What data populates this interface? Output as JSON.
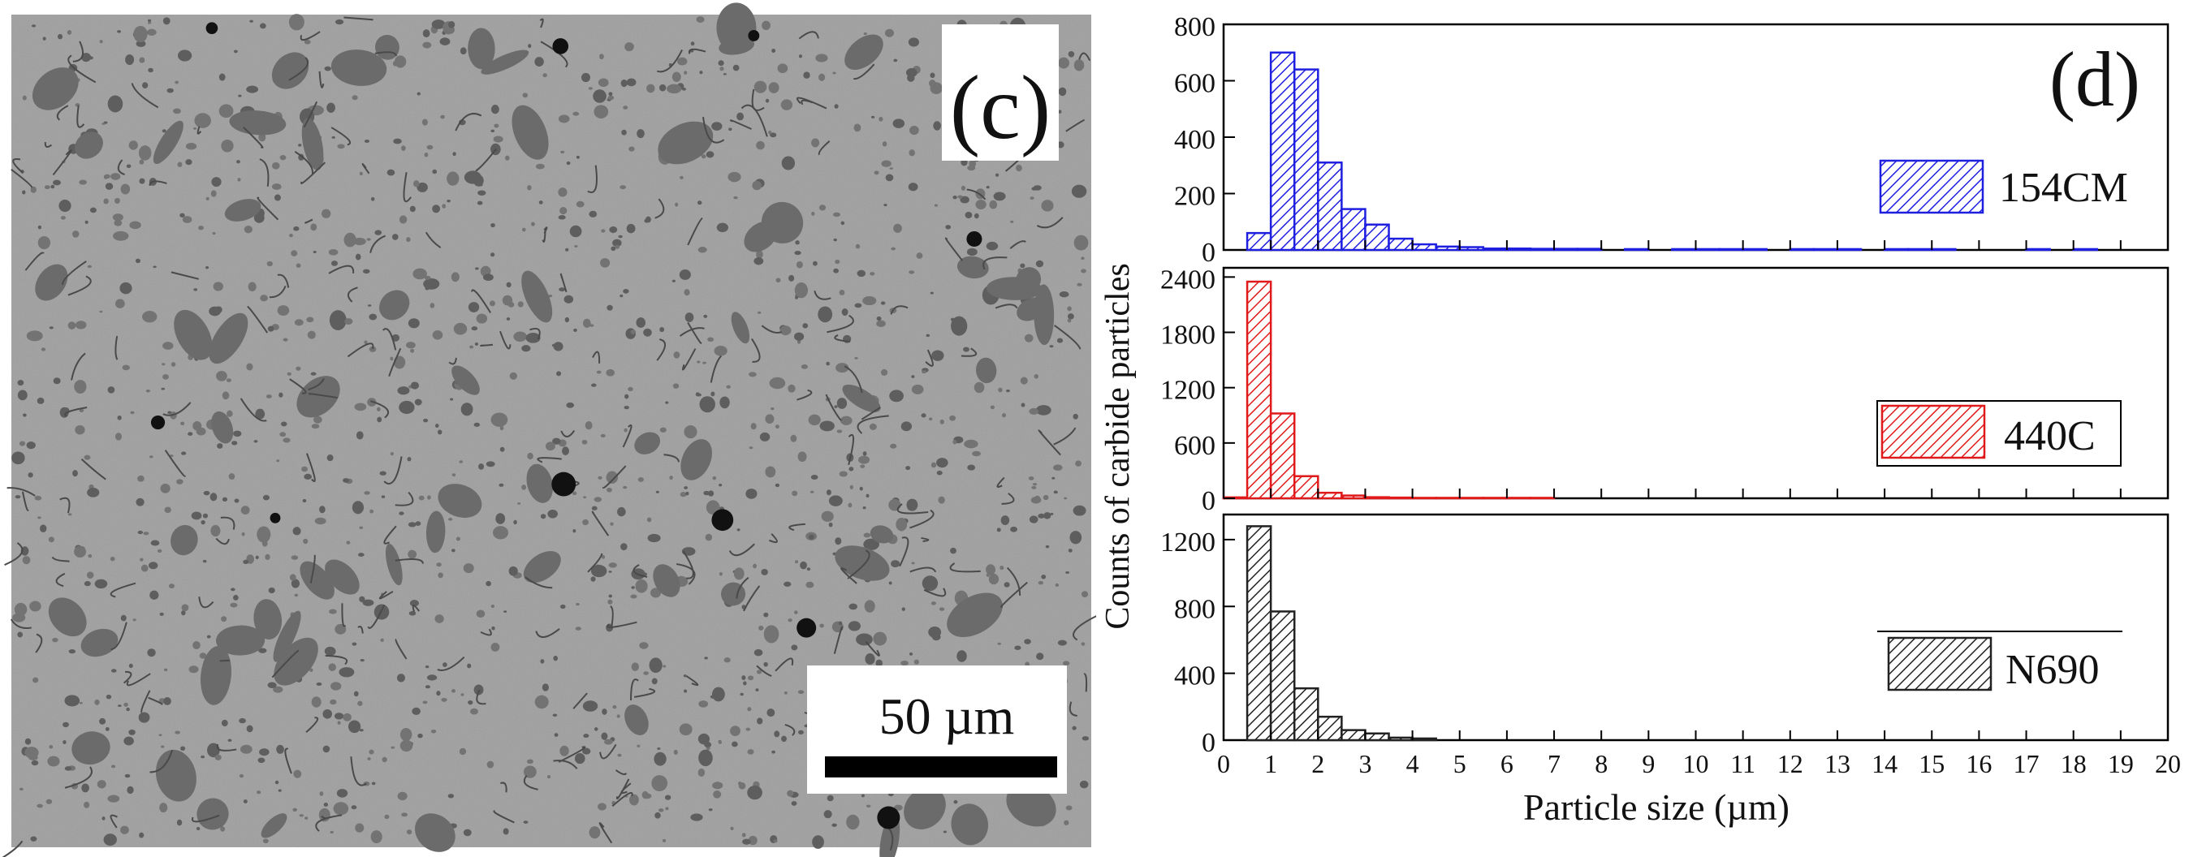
{
  "panel_c": {
    "label": "(c)",
    "scale_bar_text": "50 µm",
    "image": "SEM micrograph of carbide particles in matrix"
  },
  "panel_d": {
    "label": "(d)",
    "ylabel": "Counts of carbide particles",
    "xlabel": "Particle size (µm)"
  },
  "colors": {
    "154CM": "#1f1fe0",
    "440C": "#e01a1a",
    "N690": "#222222"
  },
  "chart_data": [
    {
      "type": "bar",
      "series_name": "154CM",
      "legend": "154CM",
      "bin_width": 0.5,
      "x": [
        0.5,
        1.0,
        1.5,
        2.0,
        2.5,
        3.0,
        3.5,
        4.0,
        4.5,
        5.0,
        5.5,
        6.0,
        6.5,
        7.0,
        7.5,
        8.0,
        8.5,
        9.0,
        9.5,
        10.0,
        10.5,
        11.0,
        11.5,
        12.0,
        12.5,
        13.0,
        13.5,
        14.0,
        14.5,
        15.0,
        15.5,
        16.0,
        16.5,
        17.0,
        17.5,
        18.0,
        18.5,
        19.0
      ],
      "values": [
        60,
        700,
        640,
        310,
        145,
        90,
        40,
        20,
        12,
        10,
        5,
        5,
        4,
        4,
        4,
        0,
        3,
        0,
        3,
        3,
        3,
        3,
        0,
        3,
        3,
        3,
        0,
        3,
        3,
        3,
        0,
        0,
        0,
        3,
        0,
        3,
        0,
        0
      ],
      "ylim": [
        0,
        800
      ],
      "yticks": [
        0,
        200,
        400,
        600,
        800
      ],
      "xlim": [
        0,
        20
      ]
    },
    {
      "type": "bar",
      "series_name": "440C",
      "legend": "440C",
      "bin_width": 0.5,
      "x": [
        0.0,
        0.5,
        1.0,
        1.5,
        2.0,
        2.5,
        3.0,
        3.5,
        4.0,
        4.5,
        5.0,
        5.5,
        6.0,
        6.5
      ],
      "values": [
        10,
        2350,
        920,
        240,
        60,
        30,
        12,
        8,
        5,
        5,
        5,
        5,
        5,
        5
      ],
      "ylim": [
        0,
        2500
      ],
      "yticks": [
        0,
        600,
        1200,
        1800,
        2400
      ],
      "xlim": [
        0,
        20
      ]
    },
    {
      "type": "bar",
      "series_name": "N690",
      "legend": "N690",
      "bin_width": 0.5,
      "x": [
        0.5,
        1.0,
        1.5,
        2.0,
        2.5,
        3.0,
        3.5,
        4.0
      ],
      "values": [
        1280,
        770,
        310,
        140,
        60,
        40,
        15,
        10
      ],
      "ylim": [
        0,
        1350
      ],
      "yticks": [
        0,
        400,
        800,
        1200
      ],
      "xlim": [
        0,
        20
      ],
      "xticks": [
        0,
        1,
        2,
        3,
        4,
        5,
        6,
        7,
        8,
        9,
        10,
        11,
        12,
        13,
        14,
        15,
        16,
        17,
        18,
        19,
        20
      ]
    }
  ]
}
